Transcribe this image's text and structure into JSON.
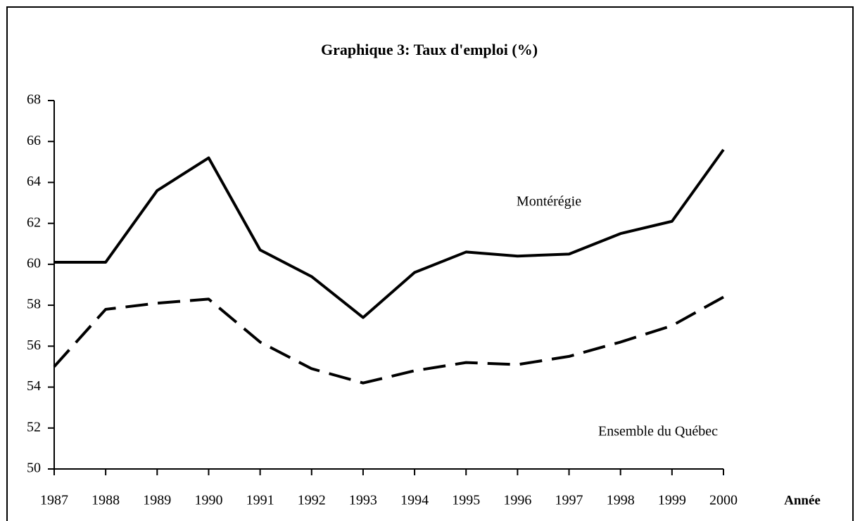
{
  "chart_data": {
    "type": "line",
    "title": "Graphique 3: Taux d'emploi (%)",
    "x_label": "Année",
    "x": [
      1987,
      1988,
      1989,
      1990,
      1991,
      1992,
      1993,
      1994,
      1995,
      1996,
      1997,
      1998,
      1999,
      2000
    ],
    "xlim": [
      1987,
      2000
    ],
    "xticks": [
      1987,
      1988,
      1989,
      1990,
      1991,
      1992,
      1993,
      1994,
      1995,
      1996,
      1997,
      1998,
      1999,
      2000
    ],
    "ylim": [
      50,
      68
    ],
    "yticks": [
      50,
      52,
      54,
      56,
      58,
      60,
      62,
      64,
      66,
      68
    ],
    "series": [
      {
        "name": "Montérégie",
        "color": "#000000",
        "dash": false,
        "values": [
          60.1,
          60.1,
          63.6,
          65.2,
          60.7,
          59.4,
          57.4,
          59.6,
          60.6,
          60.4,
          60.5,
          61.5,
          62.1,
          65.6
        ]
      },
      {
        "name": "Ensemble du Québec",
        "color": "#000000",
        "dash": true,
        "values": [
          55.0,
          57.8,
          58.1,
          58.3,
          56.2,
          54.9,
          54.2,
          54.8,
          55.2,
          55.1,
          55.5,
          56.2,
          57.0,
          58.4
        ]
      }
    ]
  }
}
